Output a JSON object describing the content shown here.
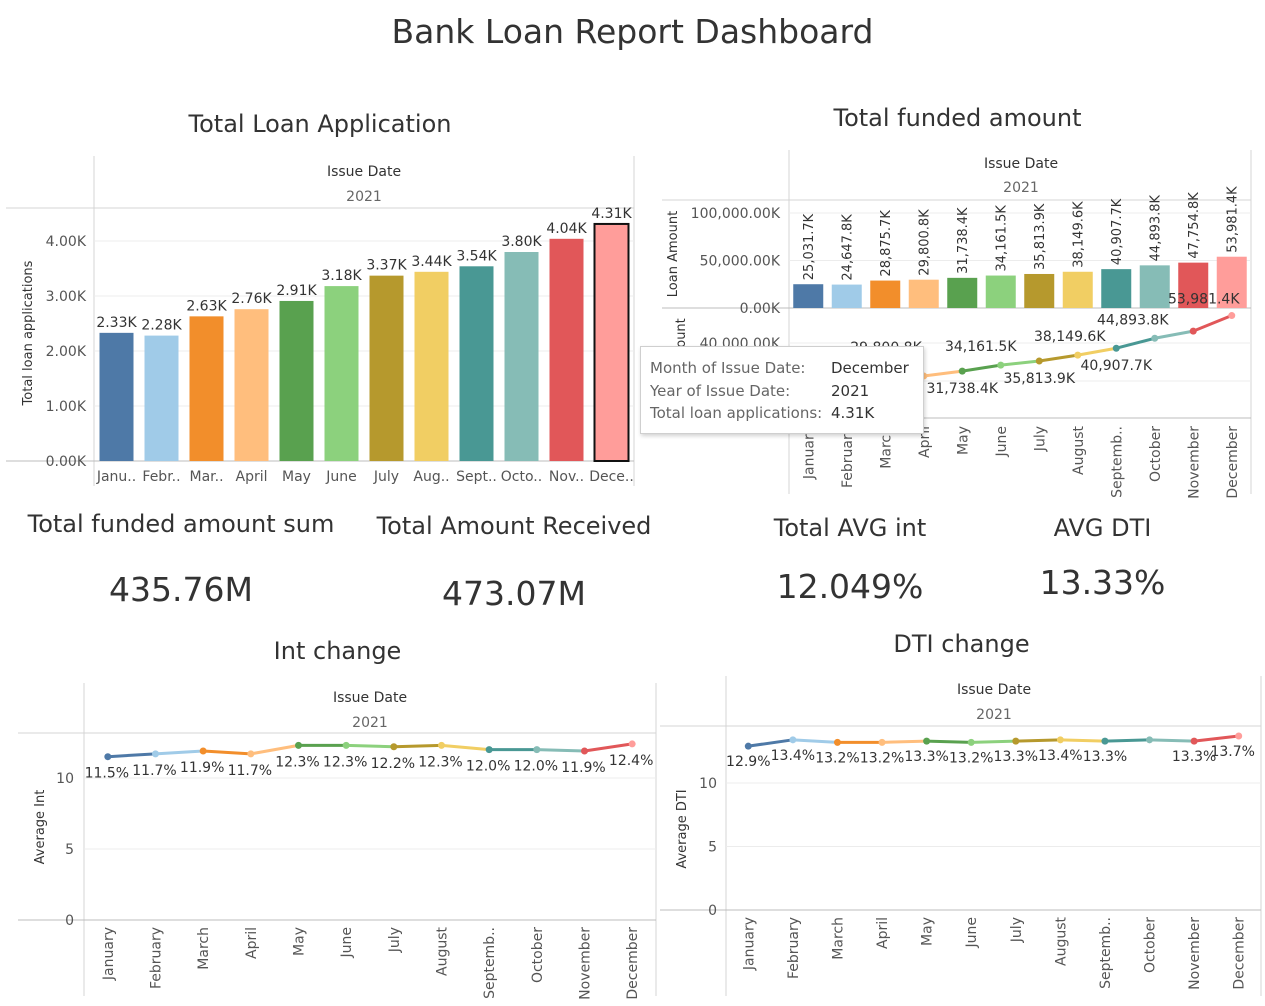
{
  "dashboard": {
    "title": "Bank Loan Report Dashboard"
  },
  "months_full": [
    "January",
    "February",
    "March",
    "April",
    "May",
    "June",
    "July",
    "August",
    "September",
    "October",
    "November",
    "December"
  ],
  "palette": [
    "#4e79a7",
    "#a0cbe8",
    "#f28e2b",
    "#ffbe7d",
    "#59a14f",
    "#8cd17d",
    "#b6992d",
    "#f1ce63",
    "#499894",
    "#86bcb6",
    "#e15759",
    "#ff9d9a"
  ],
  "loan_apps": {
    "title": "Total Loan Application",
    "header": "Issue Date",
    "year": "2021",
    "ylabel": "Total loan applications",
    "yticks": [
      "0.00K",
      "1.00K",
      "2.00K",
      "3.00K",
      "4.00K"
    ],
    "xlabels": [
      "Janu..",
      "Febr..",
      "Mar..",
      "April",
      "May",
      "June",
      "July",
      "Aug..",
      "Sept..",
      "Octo..",
      "Nov..",
      "Dece.."
    ],
    "labels": [
      "2.33K",
      "2.28K",
      "2.63K",
      "2.76K",
      "2.91K",
      "3.18K",
      "3.37K",
      "3.44K",
      "3.54K",
      "3.80K",
      "4.04K",
      "4.31K"
    ]
  },
  "funded": {
    "title": "Total funded amount",
    "header": "Issue Date",
    "year": "2021",
    "ylabel_top": "Loan Amount",
    "ylabel_bottom": "ount",
    "yticks_top": [
      "0.00K",
      "50,000.00K",
      "100,000.00K"
    ],
    "ytick_bottom": "40,000.00K",
    "hidden_label": "29,800.8K",
    "bar_labels": [
      "25,031.7K",
      "24,647.8K",
      "28,875.7K",
      "29,800.8K",
      "31,738.4K",
      "34,161.5K",
      "35,813.9K",
      "38,149.6K",
      "40,907.7K",
      "44,893.8K",
      "47,754.8K",
      "53,981.4K"
    ],
    "xlabels": [
      "January",
      "February",
      "March",
      "April",
      "May",
      "June",
      "July",
      "August",
      "Septemb..",
      "October",
      "November",
      "December"
    ],
    "line_labels": [
      "31,738.4K",
      "34,161.5K",
      "35,813.9K",
      "38,149.6K",
      "40,907.7K",
      "44,893.8K",
      "53,981.4K"
    ]
  },
  "tooltip": {
    "rows": [
      {
        "key": "Month of Issue Date:",
        "value": "December"
      },
      {
        "key": "Year of Issue Date:",
        "value": "2021"
      },
      {
        "key": "Total loan applications:",
        "value": "4.31K"
      }
    ]
  },
  "kpis": {
    "funded_sum": {
      "title": "Total funded amount sum",
      "value": "435.76M"
    },
    "received": {
      "title": "Total Amount Received",
      "value": "473.07M"
    },
    "avg_int": {
      "title": "Total AVG int",
      "value": "12.049%"
    },
    "avg_dti": {
      "title": "AVG DTI",
      "value": "13.33%"
    }
  },
  "int_change": {
    "title": "Int change",
    "header": "Issue Date",
    "year": "2021",
    "ylabel": "Average Int",
    "yticks": [
      "0",
      "5",
      "10"
    ],
    "xlabels": [
      "January",
      "February",
      "March",
      "April",
      "May",
      "June",
      "July",
      "August",
      "Septemb..",
      "October",
      "November",
      "December"
    ],
    "labels": [
      "11.5%",
      "11.7%",
      "11.9%",
      "11.7%",
      "12.3%",
      "12.3%",
      "12.2%",
      "12.3%",
      "12.0%",
      "12.0%",
      "11.9%",
      "12.4%"
    ]
  },
  "dti_change": {
    "title": "DTI change",
    "header": "Issue Date",
    "year": "2021",
    "ylabel": "Average DTI",
    "yticks": [
      "0",
      "5",
      "10"
    ],
    "xlabels": [
      "January",
      "February",
      "March",
      "April",
      "May",
      "June",
      "July",
      "August",
      "Septemb..",
      "October",
      "November",
      "December"
    ],
    "labels": [
      "12.9%",
      "13.4%",
      "13.2%",
      "13.2%",
      "13.3%",
      "13.2%",
      "13.3%",
      "13.4%",
      "13.3%",
      "",
      "13.3%",
      "13.7%"
    ]
  },
  "chart_data": [
    {
      "type": "bar",
      "title": "Total Loan Application",
      "xlabel": "Issue Date",
      "ylabel": "Total loan applications",
      "ylim": [
        0,
        4.6
      ],
      "categories": [
        "January",
        "February",
        "March",
        "April",
        "May",
        "June",
        "July",
        "August",
        "September",
        "October",
        "November",
        "December"
      ],
      "values": [
        2.33,
        2.28,
        2.63,
        2.76,
        2.91,
        3.18,
        3.37,
        3.44,
        3.54,
        3.8,
        4.04,
        4.31
      ],
      "highlighted": "December"
    },
    {
      "type": "bar",
      "title": "Total funded amount",
      "xlabel": "Issue Date",
      "ylabel": "Loan Amount",
      "ylim": [
        0,
        105000
      ],
      "categories": [
        "January",
        "February",
        "March",
        "April",
        "May",
        "June",
        "July",
        "August",
        "September",
        "October",
        "November",
        "December"
      ],
      "values": [
        25031.7,
        24647.8,
        28875.7,
        29800.8,
        31738.4,
        34161.5,
        35813.9,
        38149.6,
        40907.7,
        44893.8,
        47754.8,
        53981.4
      ],
      "overlay_line": {
        "ylim": [
          13000,
          57000
        ]
      }
    },
    {
      "type": "line",
      "title": "Int change",
      "xlabel": "Issue Date",
      "ylabel": "Average Int",
      "ylim": [
        0,
        13.2
      ],
      "categories": [
        "January",
        "February",
        "March",
        "April",
        "May",
        "June",
        "July",
        "August",
        "September",
        "October",
        "November",
        "December"
      ],
      "values": [
        11.5,
        11.7,
        11.9,
        11.7,
        12.3,
        12.3,
        12.2,
        12.3,
        12.0,
        12.0,
        11.9,
        12.4
      ]
    },
    {
      "type": "line",
      "title": "DTI change",
      "xlabel": "Issue Date",
      "ylabel": "Average DTI",
      "ylim": [
        0,
        14.5
      ],
      "categories": [
        "January",
        "February",
        "March",
        "April",
        "May",
        "June",
        "July",
        "August",
        "September",
        "October",
        "November",
        "December"
      ],
      "values": [
        12.9,
        13.4,
        13.2,
        13.2,
        13.3,
        13.2,
        13.3,
        13.4,
        13.3,
        13.4,
        13.3,
        13.7
      ]
    }
  ]
}
